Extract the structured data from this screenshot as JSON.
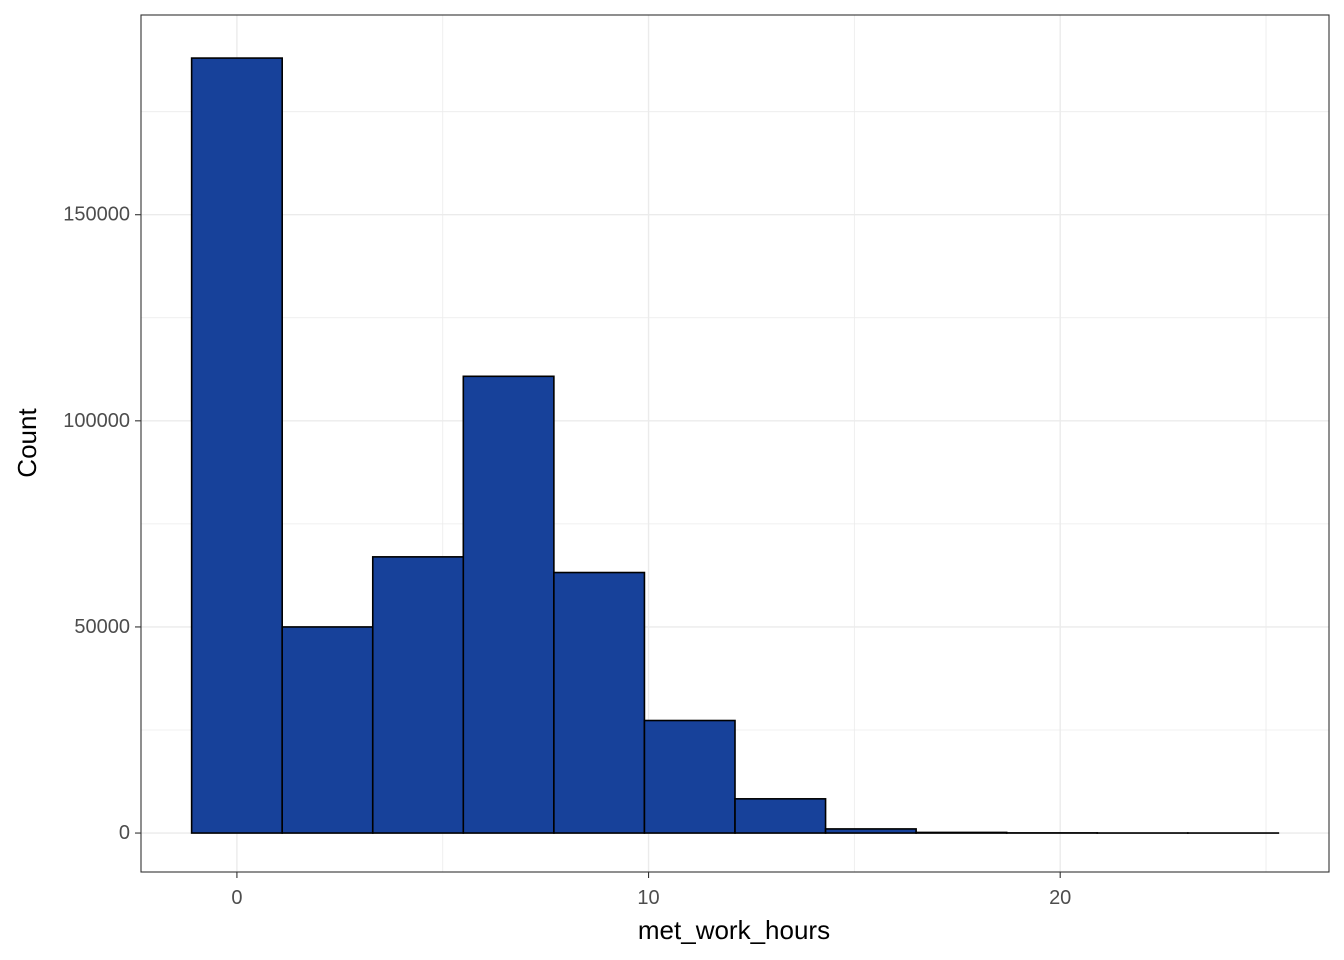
{
  "chart_data": {
    "type": "bar",
    "subtype": "histogram",
    "xlabel": "met_work_hours",
    "ylabel": "Count",
    "bins": [
      {
        "x0": -1.1,
        "x1": 1.1,
        "count": 188000
      },
      {
        "x0": 1.1,
        "x1": 3.3,
        "count": 50000
      },
      {
        "x0": 3.3,
        "x1": 5.5,
        "count": 67000
      },
      {
        "x0": 5.5,
        "x1": 7.7,
        "count": 110800
      },
      {
        "x0": 7.7,
        "x1": 9.9,
        "count": 63200
      },
      {
        "x0": 9.9,
        "x1": 12.1,
        "count": 27300
      },
      {
        "x0": 12.1,
        "x1": 14.3,
        "count": 8300
      },
      {
        "x0": 14.3,
        "x1": 16.5,
        "count": 1000
      },
      {
        "x0": 16.5,
        "x1": 18.7,
        "count": 150
      },
      {
        "x0": 18.7,
        "x1": 20.9,
        "count": 40
      },
      {
        "x0": 20.9,
        "x1": 23.1,
        "count": 10
      },
      {
        "x0": 23.1,
        "x1": 25.3,
        "count": 5
      }
    ],
    "xlim": [
      -2.33,
      26.53
    ],
    "ylim": [
      -9450,
      198450
    ],
    "x_ticks": [
      0,
      10,
      20
    ],
    "x_tick_labels": [
      "0",
      "10",
      "20"
    ],
    "y_ticks": [
      0,
      50000,
      100000,
      150000
    ],
    "y_tick_labels": [
      "0",
      "50000",
      "100000",
      "150000"
    ],
    "x_minor_ticks": [
      5,
      15,
      25
    ],
    "y_minor_ticks": [
      25000,
      75000,
      125000,
      175000
    ],
    "bar_fill": "#17419a",
    "bar_stroke": "#000000",
    "grid": true,
    "grid_color": "#ebebeb",
    "panel_border_color": "#333333",
    "theme": "bw"
  }
}
